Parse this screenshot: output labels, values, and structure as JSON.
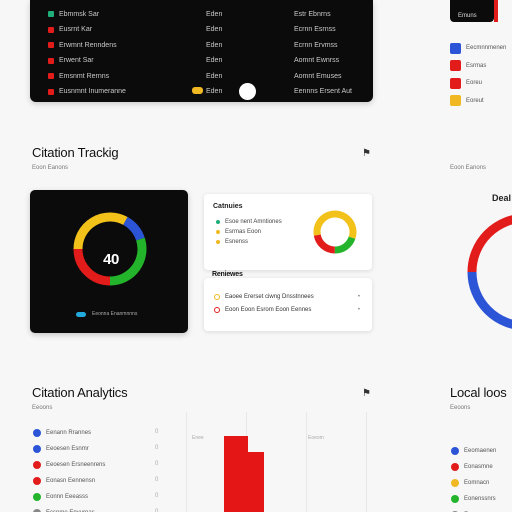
{
  "top_table": {
    "rows": [
      {
        "name": "Ebmmsk Sar",
        "col2": "Eden",
        "col3": "Estr Ebnrns",
        "color": "#1fae7a"
      },
      {
        "name": "Eusrnt Kar",
        "col2": "Eden",
        "col3": "Ecrnn Esrnss",
        "color": "#e21b1b"
      },
      {
        "name": "Erwmnt Renndens",
        "col2": "Eden",
        "col3": "Ecrnn Ervmss",
        "color": "#e21b1b"
      },
      {
        "name": "Erwent Sar",
        "col2": "Eden",
        "col3": "Aomnt Ewnrss",
        "color": "#e21b1b"
      },
      {
        "name": "Emsnmt Rernns",
        "col2": "Eden",
        "col3": "Aomnt Emuses",
        "color": "#e21b1b"
      },
      {
        "name": "Eusnmnt Inumeranne",
        "col2": "Eden",
        "col3": "Eennns Ersent Aut",
        "color": "#e21b1b"
      }
    ]
  },
  "right_top": {
    "card_label": "Emuns",
    "items": [
      {
        "label": "Eecmnnmenen",
        "color": "#2c54d6"
      },
      {
        "label": "Esrmas",
        "color": "#e21b1b"
      },
      {
        "label": "Eoreu",
        "color": "#e21b1b"
      },
      {
        "label": "Eoreut",
        "color": "#f0b823"
      }
    ]
  },
  "citation_tracking": {
    "title": "Citation Trackig",
    "subtitle": "Eoon Eanons",
    "flag_icon": "flag-icon"
  },
  "right_sub": "Eoon Eanons",
  "donut": {
    "center_label": "40",
    "footer_text": "Eeonna Enanmnnns",
    "segments": [
      {
        "label": "yellow",
        "value": 33,
        "color": "#f2c21b"
      },
      {
        "label": "blue",
        "value": 12,
        "color": "#2c54d6"
      },
      {
        "label": "green",
        "value": 30,
        "color": "#23b42b"
      },
      {
        "label": "red",
        "value": 25,
        "color": "#e21b1b"
      }
    ]
  },
  "categories_card": {
    "title": "Catnuies",
    "lines": [
      {
        "text": "Esoe  nent  Amntiones",
        "color": "#1fae7a"
      },
      {
        "text": "Esrmas Eoon",
        "color": "#f0b823"
      },
      {
        "text": "Esnenss",
        "color": "#f0b823"
      }
    ],
    "mini_donut": [
      {
        "label": "yellow",
        "value": 58,
        "color": "#f2c21b"
      },
      {
        "label": "green",
        "value": 20,
        "color": "#23b42b"
      },
      {
        "label": "red",
        "value": 22,
        "color": "#e21b1b"
      }
    ]
  },
  "reviews_card": {
    "title": "Reniewes",
    "lines": [
      {
        "text": "Eaoee  Ererset  ciwng  Dnsstnnees",
        "color": "#f0b823"
      },
      {
        "text": "Eoon  Eoon  Esrom  Eoon  Eennes",
        "color": "#e21b1b"
      }
    ]
  },
  "right_donut": {
    "title": "Deal",
    "segments": [
      {
        "label": "red",
        "value": 50,
        "color": "#e21b1b"
      },
      {
        "label": "blue",
        "value": 50,
        "color": "#2c54d6"
      }
    ]
  },
  "citation_analytics": {
    "title": "Citation Analytics",
    "subtitle": "Eeoons",
    "flag_icon": "flag-icon",
    "items": [
      {
        "label": "Eenann Rrannes",
        "color": "#2c54d6",
        "value": "0"
      },
      {
        "label": "Eeoesen Esnmr",
        "color": "#2c54d6",
        "value": "0"
      },
      {
        "label": "Eeoesen Ersneenrens",
        "color": "#e21b1b",
        "value": "0"
      },
      {
        "label": "Eonasn Eennensn",
        "color": "#e21b1b",
        "value": "0"
      },
      {
        "label": "Eonnn Eeeasss",
        "color": "#23b42b",
        "value": "0"
      },
      {
        "label": "Ecsnme Envurnas",
        "color": "#888888",
        "value": "0"
      }
    ],
    "axis_labels": [
      "Enee",
      "Eoeom"
    ]
  },
  "local_loo": {
    "title": "Local loos",
    "subtitle": "Eeoons",
    "items": [
      {
        "label": "Eeomaenen",
        "color": "#2c54d6"
      },
      {
        "label": "Eonasmne",
        "color": "#e21b1b"
      },
      {
        "label": "Eomnacn",
        "color": "#f0b823"
      },
      {
        "label": "Eonenssnrs",
        "color": "#23b42b"
      },
      {
        "label": "Eonanm",
        "color": "#888888"
      }
    ]
  }
}
